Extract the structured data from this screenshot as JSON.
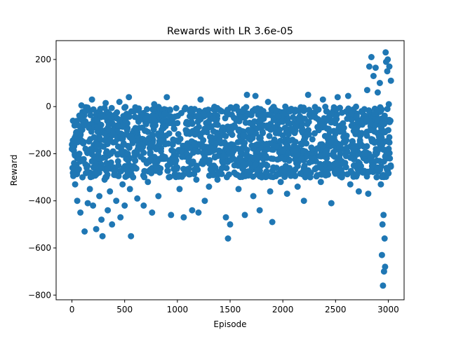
{
  "chart_data": {
    "type": "scatter",
    "title": "Rewards with LR 3.6e-05",
    "xlabel": "Episode",
    "ylabel": "Reward",
    "xlim": [
      -150,
      3150
    ],
    "ylim": [
      -820,
      280
    ],
    "x_ticks": [
      0,
      500,
      1000,
      1500,
      2000,
      2500,
      3000
    ],
    "y_ticks": [
      -800,
      -600,
      -400,
      -200,
      0,
      200
    ],
    "grid": false,
    "legend": "none",
    "marker_color": "#1f77b4",
    "series": [
      {
        "values_description_note": "",
        "points": [
          [
            0,
            -180
          ],
          [
            10,
            -60
          ],
          [
            20,
            -240
          ],
          [
            30,
            -330
          ],
          [
            40,
            -110
          ],
          [
            50,
            -400
          ],
          [
            60,
            -80
          ],
          [
            70,
            -200
          ],
          [
            80,
            -450
          ],
          [
            90,
            5
          ],
          [
            100,
            -300
          ],
          [
            110,
            -150
          ],
          [
            120,
            -530
          ],
          [
            130,
            -20
          ],
          [
            140,
            -260
          ],
          [
            150,
            -410
          ],
          [
            160,
            -90
          ],
          [
            170,
            -350
          ],
          [
            180,
            -180
          ],
          [
            190,
            30
          ],
          [
            200,
            -420
          ],
          [
            210,
            -130
          ],
          [
            220,
            -280
          ],
          [
            230,
            -520
          ],
          [
            240,
            -60
          ],
          [
            250,
            -220
          ],
          [
            260,
            -380
          ],
          [
            270,
            -10
          ],
          [
            280,
            -480
          ],
          [
            290,
            -550
          ],
          [
            300,
            -170
          ],
          [
            310,
            -310
          ],
          [
            320,
            15
          ],
          [
            330,
            -240
          ],
          [
            340,
            -440
          ],
          [
            350,
            -100
          ],
          [
            360,
            -360
          ],
          [
            370,
            -200
          ],
          [
            380,
            -500
          ],
          [
            390,
            -40
          ],
          [
            400,
            -290
          ],
          [
            410,
            -150
          ],
          [
            420,
            -400
          ],
          [
            430,
            -80
          ],
          [
            440,
            -250
          ],
          [
            450,
            20
          ],
          [
            460,
            -470
          ],
          [
            470,
            -190
          ],
          [
            480,
            -330
          ],
          [
            490,
            -120
          ],
          [
            500,
            -420
          ],
          [
            510,
            -60
          ],
          [
            520,
            -270
          ],
          [
            530,
            -200
          ],
          [
            540,
            40
          ],
          [
            550,
            -350
          ],
          [
            560,
            -550
          ],
          [
            570,
            -140
          ],
          [
            580,
            -300
          ],
          [
            590,
            -20
          ],
          [
            600,
            -230
          ],
          [
            620,
            -390
          ],
          [
            640,
            -90
          ],
          [
            660,
            -180
          ],
          [
            680,
            -420
          ],
          [
            700,
            -50
          ],
          [
            720,
            -320
          ],
          [
            740,
            -160
          ],
          [
            760,
            -450
          ],
          [
            780,
            10
          ],
          [
            800,
            -260
          ],
          [
            820,
            -380
          ],
          [
            840,
            -120
          ],
          [
            860,
            -210
          ],
          [
            880,
            -30
          ],
          [
            900,
            40
          ],
          [
            920,
            -300
          ],
          [
            940,
            -460
          ],
          [
            960,
            -140
          ],
          [
            980,
            -240
          ],
          [
            1000,
            -70
          ],
          [
            1020,
            -350
          ],
          [
            1040,
            -190
          ],
          [
            1060,
            -470
          ],
          [
            1080,
            -100
          ],
          [
            1100,
            -280
          ],
          [
            1120,
            -20
          ],
          [
            1140,
            -440
          ],
          [
            1160,
            -160
          ],
          [
            1180,
            -310
          ],
          [
            1200,
            -450
          ],
          [
            1220,
            30
          ],
          [
            1240,
            -230
          ],
          [
            1260,
            -400
          ],
          [
            1280,
            -90
          ],
          [
            1300,
            -340
          ],
          [
            1320,
            -180
          ],
          [
            1340,
            -50
          ],
          [
            1360,
            -260
          ],
          [
            1380,
            -310
          ],
          [
            1400,
            -140
          ],
          [
            1420,
            -20
          ],
          [
            1440,
            -210
          ],
          [
            1460,
            -470
          ],
          [
            1480,
            -560
          ],
          [
            1500,
            -500
          ],
          [
            1520,
            -120
          ],
          [
            1540,
            -280
          ],
          [
            1560,
            -60
          ],
          [
            1580,
            -350
          ],
          [
            1600,
            -180
          ],
          [
            1620,
            -20
          ],
          [
            1640,
            -460
          ],
          [
            1660,
            50
          ],
          [
            1680,
            -240
          ],
          [
            1700,
            -100
          ],
          [
            1720,
            -380
          ],
          [
            1740,
            45
          ],
          [
            1760,
            -160
          ],
          [
            1780,
            -440
          ],
          [
            1800,
            -300
          ],
          [
            1820,
            -80
          ],
          [
            1840,
            -210
          ],
          [
            1860,
            20
          ],
          [
            1880,
            -360
          ],
          [
            1900,
            -490
          ],
          [
            1920,
            -140
          ],
          [
            1940,
            -260
          ],
          [
            1960,
            -40
          ],
          [
            1980,
            -320
          ],
          [
            2000,
            -190
          ],
          [
            2020,
            -90
          ],
          [
            2040,
            -370
          ],
          [
            2060,
            -230
          ],
          [
            2080,
            -10
          ],
          [
            2100,
            -280
          ],
          [
            2120,
            -150
          ],
          [
            2140,
            -340
          ],
          [
            2160,
            -60
          ],
          [
            2180,
            -220
          ],
          [
            2200,
            -400
          ],
          [
            2220,
            -120
          ],
          [
            2240,
            50
          ],
          [
            2260,
            -300
          ],
          [
            2280,
            -180
          ],
          [
            2300,
            -40
          ],
          [
            2320,
            -260
          ],
          [
            2340,
            -100
          ],
          [
            2360,
            -320
          ],
          [
            2380,
            30
          ],
          [
            2400,
            -200
          ],
          [
            2420,
            -280
          ],
          [
            2440,
            -130
          ],
          [
            2460,
            -410
          ],
          [
            2480,
            -60
          ],
          [
            2500,
            -240
          ],
          [
            2520,
            40
          ],
          [
            2540,
            -170
          ],
          [
            2560,
            -300
          ],
          [
            2580,
            -90
          ],
          [
            2600,
            -210
          ],
          [
            2620,
            45
          ],
          [
            2640,
            -330
          ],
          [
            2660,
            -150
          ],
          [
            2680,
            -250
          ],
          [
            2700,
            -40
          ],
          [
            2720,
            -360
          ],
          [
            2740,
            -120
          ],
          [
            2760,
            -280
          ],
          [
            2780,
            -200
          ],
          [
            2800,
            70
          ],
          [
            2810,
            -370
          ],
          [
            2820,
            170
          ],
          [
            2830,
            -100
          ],
          [
            2840,
            210
          ],
          [
            2850,
            -250
          ],
          [
            2860,
            130
          ],
          [
            2870,
            -30
          ],
          [
            2880,
            165
          ],
          [
            2890,
            -300
          ],
          [
            2900,
            60
          ],
          [
            2910,
            -180
          ],
          [
            2920,
            100
          ],
          [
            2930,
            -330
          ],
          [
            2940,
            -630
          ],
          [
            2945,
            -500
          ],
          [
            2950,
            -760
          ],
          [
            2955,
            -460
          ],
          [
            2960,
            -700
          ],
          [
            2965,
            -560
          ],
          [
            2970,
            -680
          ],
          [
            2975,
            230
          ],
          [
            2980,
            190
          ],
          [
            2985,
            -260
          ],
          [
            2990,
            150
          ],
          [
            2995,
            200
          ],
          [
            3000,
            -100
          ],
          [
            3005,
            10
          ],
          [
            3010,
            170
          ],
          [
            3015,
            -220
          ],
          [
            3020,
            -60
          ],
          [
            3025,
            110
          ]
        ]
      }
    ],
    "dense_band": {
      "x_range": [
        0,
        3025
      ],
      "typical_range": [
        -300,
        0
      ]
    }
  }
}
